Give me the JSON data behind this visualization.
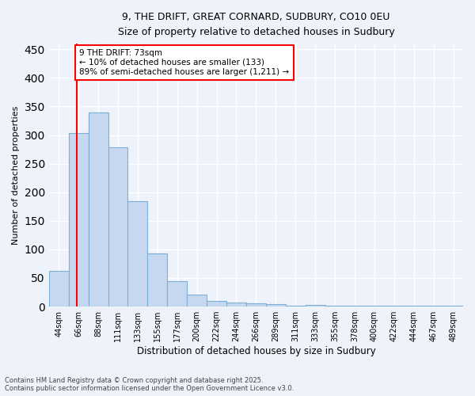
{
  "title1": "9, THE DRIFT, GREAT CORNARD, SUDBURY, CO10 0EU",
  "title2": "Size of property relative to detached houses in Sudbury",
  "xlabel": "Distribution of detached houses by size in Sudbury",
  "ylabel": "Number of detached properties",
  "categories": [
    "44sqm",
    "66sqm",
    "88sqm",
    "111sqm",
    "133sqm",
    "155sqm",
    "177sqm",
    "200sqm",
    "222sqm",
    "244sqm",
    "266sqm",
    "289sqm",
    "311sqm",
    "333sqm",
    "355sqm",
    "378sqm",
    "400sqm",
    "422sqm",
    "444sqm",
    "467sqm",
    "489sqm"
  ],
  "bar_values": [
    63,
    303,
    340,
    278,
    185,
    93,
    45,
    21,
    10,
    7,
    5,
    4,
    2,
    3,
    1,
    1,
    1,
    1,
    1,
    1,
    1
  ],
  "bar_color": "#c5d8f0",
  "bar_edge_color": "#7bafd4",
  "vline_x": 1.4,
  "vline_color": "red",
  "annotation_text": "9 THE DRIFT: 73sqm\n← 10% of detached houses are smaller (133)\n89% of semi-detached houses are larger (1,211) →",
  "annotation_box_color": "white",
  "annotation_box_edge": "red",
  "ylim": [
    0,
    460
  ],
  "yticks": [
    0,
    50,
    100,
    150,
    200,
    250,
    300,
    350,
    400,
    450
  ],
  "background_color": "#eef2fb",
  "grid_color": "white",
  "footer1": "Contains HM Land Registry data © Crown copyright and database right 2025.",
  "footer2": "Contains public sector information licensed under the Open Government Licence v3.0."
}
